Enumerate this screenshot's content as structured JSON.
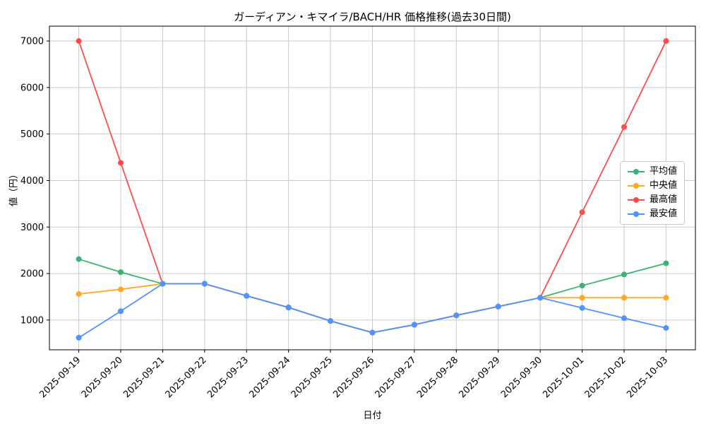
{
  "figure": {
    "background": "#ffffff",
    "grid_color": "#c9c9c9",
    "axis_color": "#000000"
  },
  "chart_data": {
    "type": "line",
    "title": "ガーディアン・キマイラ/BACH/HR 価格推移(過去30日間)",
    "xlabel": "日付",
    "ylabel": "値（円）",
    "categories": [
      "2025-09-19",
      "2025-09-20",
      "2025-09-21",
      "2025-09-22",
      "2025-09-23",
      "2025-09-24",
      "2025-09-25",
      "2025-09-26",
      "2025-09-27",
      "2025-09-28",
      "2025-09-29",
      "2025-09-30",
      "2025-10-01",
      "2025-10-02",
      "2025-10-03"
    ],
    "series": [
      {
        "name": "平均値",
        "color": "#3cb371",
        "values": [
          2310,
          2030,
          1780,
          1780,
          1520,
          1270,
          980,
          730,
          900,
          1100,
          1290,
          1480,
          1740,
          1980,
          2220
        ]
      },
      {
        "name": "中央値",
        "color": "#ffa726",
        "values": [
          1560,
          1660,
          1780,
          1780,
          1520,
          1270,
          980,
          730,
          900,
          1100,
          1290,
          1480,
          1480,
          1480,
          1480
        ]
      },
      {
        "name": "最高値",
        "color": "#ff4d4d",
        "values": [
          7000,
          4380,
          1780,
          1780,
          1520,
          1270,
          980,
          730,
          900,
          1100,
          1290,
          1480,
          3320,
          5150,
          7000
        ]
      },
      {
        "name": "最安値",
        "color": "#4d94ff",
        "values": [
          620,
          1190,
          1780,
          1780,
          1520,
          1270,
          980,
          730,
          900,
          1100,
          1290,
          1480,
          1260,
          1040,
          830
        ]
      }
    ],
    "yticks": [
      1000,
      2000,
      3000,
      4000,
      5000,
      6000,
      7000
    ],
    "ylim": [
      360,
      7320
    ],
    "grid": true,
    "legend_position": "center-right"
  }
}
